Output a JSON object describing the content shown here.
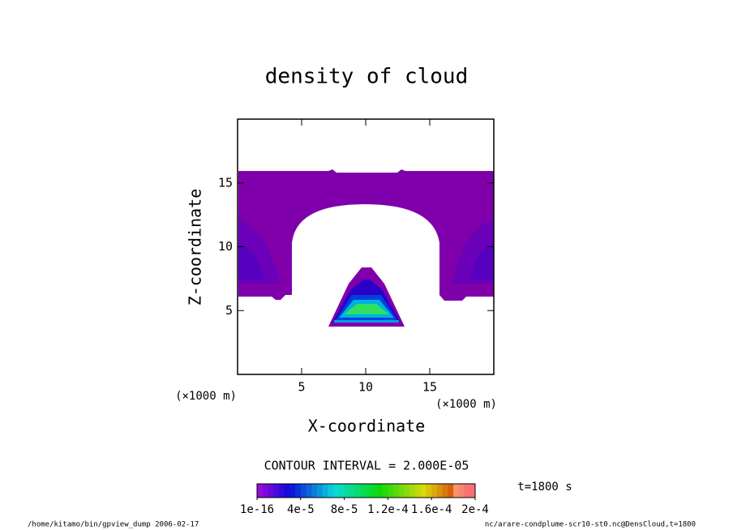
{
  "chart_data": {
    "type": "contour",
    "title": "density of cloud",
    "x_label": "X-coordinate",
    "y_label": "Z-coordinate",
    "x_unit": "(×1000 m)",
    "y_unit": "(×1000 m)",
    "xlim": [
      0,
      20
    ],
    "xticks": [
      5,
      10,
      15
    ],
    "ylim": [
      0,
      20
    ],
    "yticks": [
      5,
      10,
      15
    ],
    "contour_interval": "CONTOUR INTERVAL = 2.000E-05",
    "time_label": "t=1800 s",
    "colorbar": {
      "lim": [
        1e-16,
        0.0002
      ],
      "ticks": [
        {
          "value": 1e-16,
          "label": "1e-16"
        },
        {
          "value": 4e-05,
          "label": "4e-5"
        },
        {
          "value": 8e-05,
          "label": "8e-5"
        },
        {
          "value": 0.00012,
          "label": "1.2e-4"
        },
        {
          "value": 0.00016,
          "label": "1.6e-4"
        },
        {
          "value": 0.0002,
          "label": "2e-4"
        }
      ]
    },
    "footer_left": "/home/kitamo/bin/gpview_dump  2006-02-17",
    "footer_right": "nc/arare-condplume-scr10-st0.nc@DensCloud,t=1800"
  }
}
